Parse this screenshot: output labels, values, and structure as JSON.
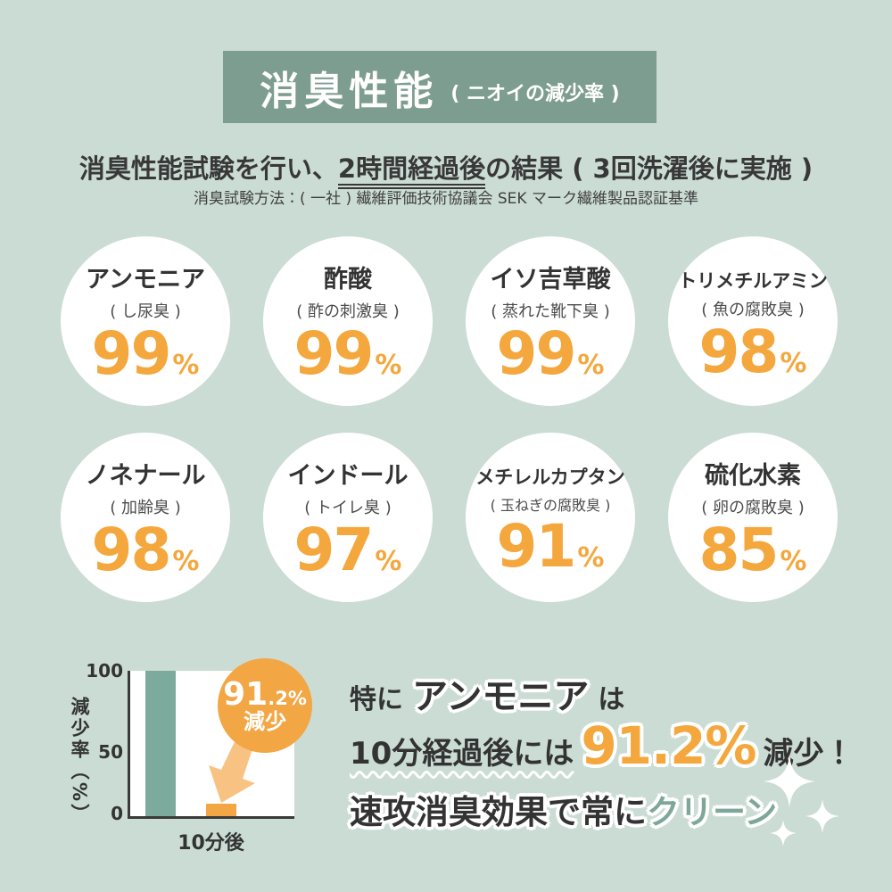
{
  "palette": {
    "background": "#cbdcd5",
    "badge_teal": "#7d9d90",
    "accent_orange": "#f4a73d",
    "bar_teal": "#7caa9d",
    "text_dark": "#3a3a3a",
    "clean_teal": "#7ea79a",
    "white": "#ffffff"
  },
  "header": {
    "title": "消臭性能",
    "subtitle": "( ニオイの減少率 )"
  },
  "lead": {
    "before": "消臭性能試験を行い、",
    "underlined": "2時間経過後",
    "after": "の結果 ( 3回洗濯後に実施 )",
    "method": "消臭試験方法：( 一社 ) 繊維評価技術協議会 SEK マーク繊維製品認証基準"
  },
  "circles": [
    {
      "name": "アンモニア",
      "source": "( し尿臭 )",
      "value": "99",
      "unit": "%"
    },
    {
      "name": "酢酸",
      "source": "( 酢の刺激臭 )",
      "value": "99",
      "unit": "%"
    },
    {
      "name": "イソ吉草酸",
      "source": "( 蒸れた靴下臭 )",
      "value": "99",
      "unit": "%"
    },
    {
      "name": "トリメチルアミン",
      "source": "( 魚の腐敗臭 )",
      "value": "98",
      "unit": "%"
    },
    {
      "name": "ノネナール",
      "source": "( 加齢臭 )",
      "value": "98",
      "unit": "%"
    },
    {
      "name": "インドール",
      "source": "( トイレ臭 )",
      "value": "97",
      "unit": "%"
    },
    {
      "name": "メチレルカプタン",
      "source": "( 玉ねぎの腐敗臭 )",
      "value": "91",
      "unit": "%"
    },
    {
      "name": "硫化水素",
      "source": "( 卵の腐敗臭 )",
      "value": "85",
      "unit": "%"
    }
  ],
  "chart_data": {
    "type": "bar",
    "title": "",
    "ylabel": "減少率（%）",
    "ylim": [
      0,
      100
    ],
    "yticks": [
      "100",
      "50",
      "0"
    ],
    "grid": false,
    "categories": [
      "",
      "10分後"
    ],
    "series": [
      {
        "name": "減少率",
        "values": [
          100,
          8.8
        ]
      }
    ],
    "bar_colors": [
      "#7caa9d",
      "#f2a644"
    ],
    "annotation": {
      "value_int": "91",
      "value_frac": ".2%",
      "label": "減少"
    }
  },
  "feature": {
    "line1": {
      "pre": "特に",
      "em": "アンモニア",
      "post": "は"
    },
    "line2": {
      "pre": "10分経過後には",
      "value": "91.2%",
      "post": "減少！"
    },
    "line3": {
      "main": "速攻消臭効果で常に",
      "accent": "クリーン"
    }
  },
  "icons": {
    "sparkles": "sparkle-icon",
    "arrow": "arrow-down-icon"
  }
}
